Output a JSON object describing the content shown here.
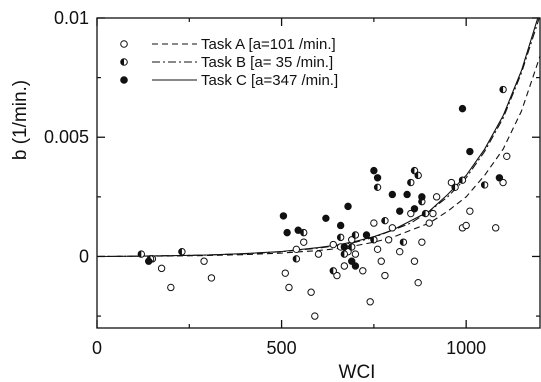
{
  "chart_data": {
    "type": "scatter",
    "title": "",
    "xlabel": "WCI",
    "ylabel": "b (1/min.)",
    "xlim": [
      0,
      1200
    ],
    "ylim": [
      -0.003,
      0.01
    ],
    "grid": false,
    "legend_position": "top-left",
    "x_ticks": [
      {
        "value": 0,
        "label": "0"
      },
      {
        "value": 500,
        "label": "500"
      },
      {
        "value": 1000,
        "label": "1000"
      }
    ],
    "y_ticks": [
      {
        "value": 0,
        "label": "0"
      },
      {
        "value": 0.005,
        "label": "0.005"
      },
      {
        "value": 0.01,
        "label": "0.01"
      }
    ],
    "series": [
      {
        "name": "Task A [a=101 /min.]",
        "marker": "open-circle",
        "line_style": "dashed",
        "curve": [
          [
            0,
            0
          ],
          [
            100,
            1e-05
          ],
          [
            200,
            2e-05
          ],
          [
            300,
            4e-05
          ],
          [
            400,
            8e-05
          ],
          [
            500,
            0.00014
          ],
          [
            600,
            0.00025
          ],
          [
            650,
            0.00033
          ],
          [
            700,
            0.00045
          ],
          [
            750,
            0.0006
          ],
          [
            800,
            0.0008
          ],
          [
            850,
            0.0011
          ],
          [
            900,
            0.0014
          ],
          [
            950,
            0.0019
          ],
          [
            1000,
            0.0025
          ],
          [
            1050,
            0.0034
          ],
          [
            1100,
            0.0045
          ],
          [
            1150,
            0.0061
          ],
          [
            1200,
            0.0084
          ]
        ],
        "points": [
          [
            150,
            -0.0001
          ],
          [
            175,
            -0.0005
          ],
          [
            200,
            -0.0013
          ],
          [
            290,
            -0.0002
          ],
          [
            310,
            -0.0009
          ],
          [
            510,
            -0.0007
          ],
          [
            520,
            -0.0013
          ],
          [
            540,
            0.0003
          ],
          [
            560,
            0.0006
          ],
          [
            580,
            -0.0015
          ],
          [
            590,
            -0.0025
          ],
          [
            600,
            0.0001
          ],
          [
            640,
            0.0005
          ],
          [
            650,
            -0.0008
          ],
          [
            660,
            0.0004
          ],
          [
            670,
            -0.0004
          ],
          [
            680,
            0.0002
          ],
          [
            690,
            0.0007
          ],
          [
            700,
            0.0001
          ],
          [
            720,
            -0.0006
          ],
          [
            740,
            -0.0019
          ],
          [
            750,
            0.0014
          ],
          [
            760,
            0.0003
          ],
          [
            770,
            -0.0002
          ],
          [
            780,
            -0.0008
          ],
          [
            790,
            0.0007
          ],
          [
            800,
            0.0012
          ],
          [
            820,
            0.0002
          ],
          [
            850,
            0.0018
          ],
          [
            860,
            -0.0002
          ],
          [
            870,
            -0.0011
          ],
          [
            880,
            0.0006
          ],
          [
            900,
            0.0014
          ],
          [
            910,
            0.0018
          ],
          [
            920,
            0.0025
          ],
          [
            960,
            0.0031
          ],
          [
            990,
            0.0012
          ],
          [
            1000,
            0.0013
          ],
          [
            1010,
            0.0019
          ],
          [
            1080,
            0.0012
          ],
          [
            1100,
            0.0031
          ],
          [
            1110,
            0.0042
          ]
        ]
      },
      {
        "name": "Task B [a= 35 /min.]",
        "marker": "half-filled-circle",
        "line_style": "dashdot",
        "curve": [
          [
            0,
            0
          ],
          [
            100,
            1e-05
          ],
          [
            200,
            3e-05
          ],
          [
            300,
            6e-05
          ],
          [
            400,
            0.00011
          ],
          [
            500,
            0.0002
          ],
          [
            600,
            0.00035
          ],
          [
            650,
            0.00046
          ],
          [
            700,
            0.0006
          ],
          [
            750,
            0.0008
          ],
          [
            800,
            0.0011
          ],
          [
            850,
            0.0014
          ],
          [
            900,
            0.0019
          ],
          [
            950,
            0.0025
          ],
          [
            1000,
            0.0033
          ],
          [
            1050,
            0.0044
          ],
          [
            1100,
            0.0058
          ],
          [
            1150,
            0.0077
          ],
          [
            1200,
            0.0101
          ]
        ],
        "points": [
          [
            120,
            0.0001
          ],
          [
            145,
            -0.0001
          ],
          [
            230,
            0.0002
          ],
          [
            540,
            -0.0001
          ],
          [
            560,
            0.001
          ],
          [
            640,
            -0.0006
          ],
          [
            660,
            0.0008
          ],
          [
            670,
            0.0001
          ],
          [
            690,
            0.0004
          ],
          [
            700,
            0.0009
          ],
          [
            750,
            0.0007
          ],
          [
            760,
            0.0029
          ],
          [
            780,
            0.0015
          ],
          [
            830,
            0.0006
          ],
          [
            850,
            0.0031
          ],
          [
            860,
            0.0036
          ],
          [
            870,
            0.0034
          ],
          [
            880,
            0.0023
          ],
          [
            890,
            0.0018
          ],
          [
            970,
            0.0029
          ],
          [
            990,
            0.0032
          ],
          [
            1050,
            0.003
          ],
          [
            1100,
            0.007
          ]
        ]
      },
      {
        "name": "Task C [a=347 /min.]",
        "marker": "filled-circle",
        "line_style": "solid",
        "curve": [
          [
            0,
            0
          ],
          [
            100,
            1e-05
          ],
          [
            200,
            3e-05
          ],
          [
            300,
            6e-05
          ],
          [
            400,
            0.00012
          ],
          [
            500,
            0.00021
          ],
          [
            600,
            0.00037
          ],
          [
            650,
            0.00048
          ],
          [
            700,
            0.00063
          ],
          [
            750,
            0.00083
          ],
          [
            800,
            0.0011
          ],
          [
            850,
            0.0015
          ],
          [
            900,
            0.0019
          ],
          [
            950,
            0.0026
          ],
          [
            1000,
            0.0034
          ],
          [
            1050,
            0.0045
          ],
          [
            1100,
            0.0059
          ],
          [
            1150,
            0.0078
          ],
          [
            1200,
            0.0103
          ]
        ],
        "points": [
          [
            140,
            -0.0002
          ],
          [
            505,
            0.0017
          ],
          [
            515,
            0.001
          ],
          [
            545,
            0.0011
          ],
          [
            620,
            0.0016
          ],
          [
            660,
            0.0013
          ],
          [
            670,
            0.0004
          ],
          [
            680,
            0.0021
          ],
          [
            690,
            -0.0002
          ],
          [
            700,
            -0.0004
          ],
          [
            730,
            0.0009
          ],
          [
            750,
            0.0036
          ],
          [
            760,
            0.0033
          ],
          [
            800,
            0.0026
          ],
          [
            820,
            0.0019
          ],
          [
            840,
            0.0026
          ],
          [
            860,
            0.002
          ],
          [
            880,
            0.0025
          ],
          [
            990,
            0.0062
          ],
          [
            1010,
            0.0044
          ],
          [
            1090,
            0.0033
          ]
        ]
      }
    ]
  }
}
